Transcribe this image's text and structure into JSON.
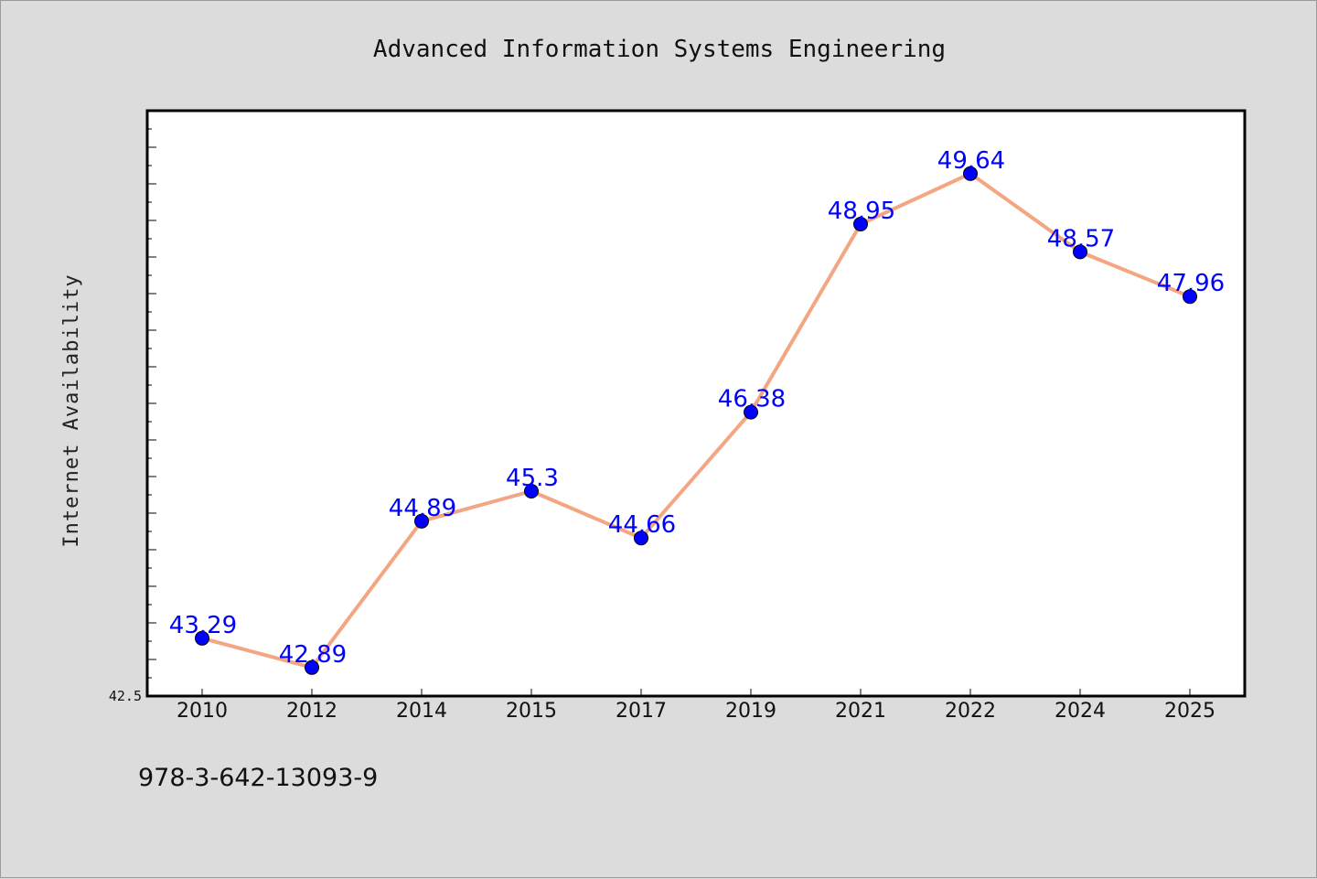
{
  "chart_data": {
    "type": "line",
    "title": "Advanced Information Systems Engineering",
    "xlabel": "",
    "ylabel": "Internet Availability",
    "categories": [
      "2010",
      "2012",
      "2014",
      "2015",
      "2017",
      "2019",
      "2021",
      "2022",
      "2024",
      "2025"
    ],
    "series": [
      {
        "values": [
          43.29,
          42.89,
          44.89,
          45.3,
          44.66,
          46.38,
          48.95,
          49.64,
          48.57,
          47.96
        ],
        "labels": [
          "43.29",
          "42.89",
          "44.89",
          "45.3",
          "44.66",
          "46.38",
          "48.95",
          "49.64",
          "48.57",
          "47.96"
        ]
      }
    ],
    "ylim": [
      42.5,
      50.5
    ],
    "y_tick_labels": [
      "42.5"
    ],
    "grid": false,
    "legend": "none",
    "colors": {
      "line": "#f4a582",
      "marker": "#0000ff",
      "label": "#0000ff",
      "background": "#dcdcdc",
      "plot_background": "#ffffff"
    }
  },
  "footnote": "978-3-642-13093-9"
}
